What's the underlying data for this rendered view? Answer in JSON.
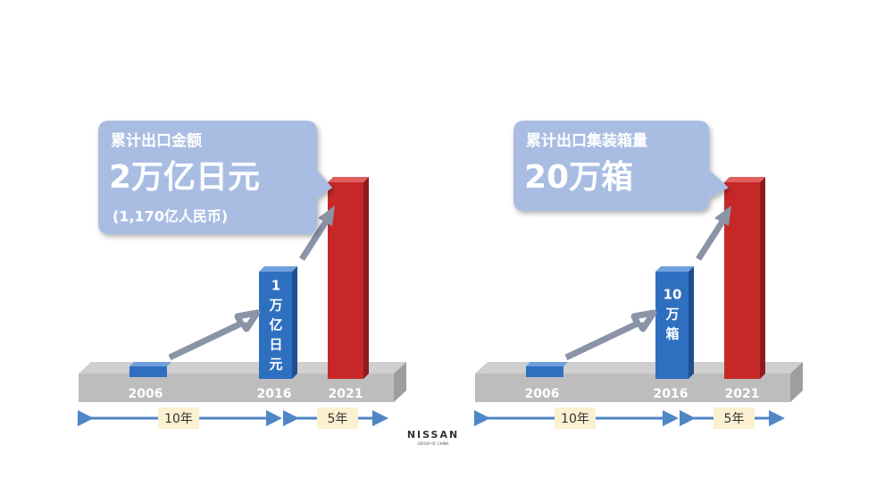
{
  "panels": [
    {
      "callout": {
        "title": "累计出口金额",
        "value": "2万亿日元",
        "note": "(1,170亿人民币)"
      },
      "bar_label": [
        "1",
        "万",
        "亿",
        "日",
        "元"
      ],
      "years": [
        "2006",
        "2016",
        "2021"
      ],
      "spans": [
        "10年",
        "5年"
      ]
    },
    {
      "callout": {
        "title": "累计出口集装箱量",
        "value": "20万箱"
      },
      "bar_label": [
        "10",
        "万",
        "箱"
      ],
      "years": [
        "2006",
        "2016",
        "2021"
      ],
      "spans": [
        "10年",
        "5年"
      ]
    }
  ],
  "logo": {
    "name": "NISSAN",
    "sub": "GROUP OF CHINA"
  }
}
